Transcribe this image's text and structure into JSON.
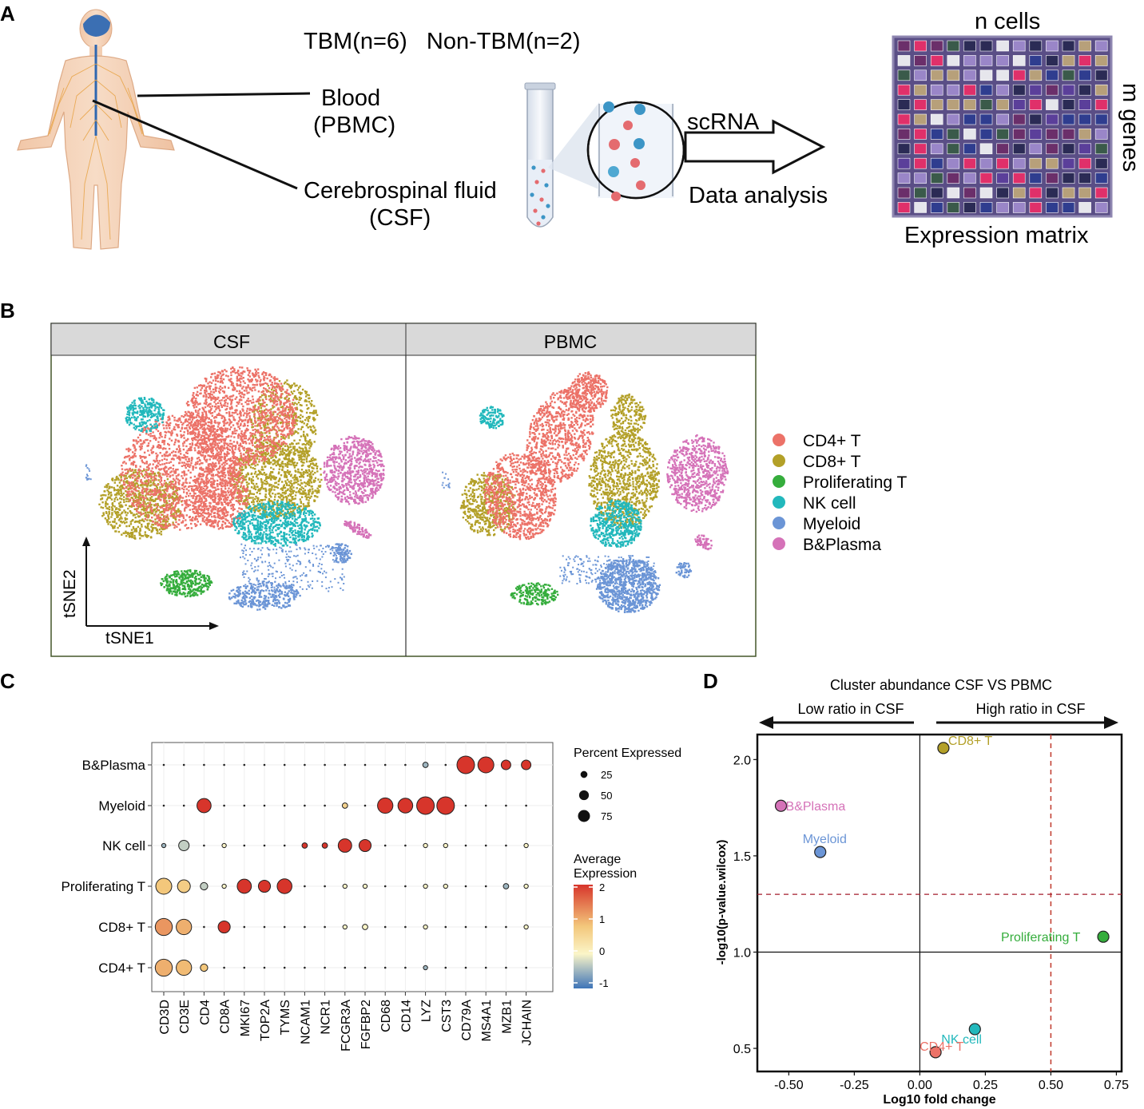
{
  "panel_labels": {
    "a": "A",
    "b": "B",
    "c": "C",
    "d": "D"
  },
  "panelA": {
    "cohort": "TBM(n=6)   Non-TBM(n=2)",
    "blood_line1": "Blood",
    "blood_line2": "(PBMC)",
    "csf_line1": "Cerebrospinal fluid",
    "csf_line2": "(CSF)",
    "scrna": "scRNA",
    "data_analysis": "Data analysis",
    "n_cells": "n cells",
    "m_genes": "m genes",
    "matrix_label": "Expression matrix",
    "matrix_colors": [
      "#5b3f9a",
      "#e6e6ec",
      "#e0306a",
      "#b7a07a",
      "#2f3d8f",
      "#6b2f6a",
      "#2b2b55",
      "#9a86c8",
      "#3a5a4a"
    ]
  },
  "panelB": {
    "facet_csf": "CSF",
    "facet_pbmc": "PBMC",
    "x_axis": "tSNE1",
    "y_axis": "tSNE2",
    "legend": [
      {
        "label": "CD4+ T",
        "color": "#ec7268"
      },
      {
        "label": "CD8+ T",
        "color": "#b3a028"
      },
      {
        "label": "Proliferating T",
        "color": "#35ad3c"
      },
      {
        "label": "NK cell",
        "color": "#22b8bc"
      },
      {
        "label": "Myeloid",
        "color": "#6b95d6"
      },
      {
        "label": "B&Plasma",
        "color": "#d572b8"
      }
    ]
  },
  "panelC": {
    "legend_size_title": "Percent Expressed",
    "legend_size_values": [
      "25",
      "50",
      "75"
    ],
    "legend_color_title_1": "Average",
    "legend_color_title_2": "Expression",
    "legend_color_ticks": [
      "2",
      "1",
      "0",
      "-1"
    ]
  },
  "panelD": {
    "title": "Cluster abundance CSF VS PBMC",
    "low": "Low ratio in CSF",
    "high": "High ratio in CSF",
    "xlabel": "Log10 fold change",
    "ylabel": "-log10(p-value.wilcox)"
  },
  "chart_data": [
    {
      "type": "scatter",
      "title": "",
      "xlabel": "",
      "ylabel": "",
      "genes": [
        "CD3D",
        "CD3E",
        "CD4",
        "CD8A",
        "MKI67",
        "TOP2A",
        "TYMS",
        "NCAM1",
        "NCR1",
        "FCGR3A",
        "FGFBP2",
        "CD68",
        "CD14",
        "LYZ",
        "CST3",
        "CD79A",
        "MS4A1",
        "MZB1",
        "JCHAIN"
      ],
      "clusters": [
        "B&Plasma",
        "Myeloid",
        "NK cell",
        "Proliferating T",
        "CD8+ T",
        "CD4+ T"
      ],
      "percent_expressed": [
        [
          3,
          3,
          2,
          2,
          2,
          2,
          2,
          2,
          2,
          2,
          2,
          2,
          2,
          8,
          3,
          85,
          70,
          25,
          25
        ],
        [
          3,
          3,
          55,
          2,
          2,
          2,
          2,
          2,
          2,
          8,
          2,
          65,
          60,
          85,
          85,
          2,
          2,
          2,
          3
        ],
        [
          5,
          30,
          2,
          5,
          2,
          2,
          2,
          8,
          8,
          50,
          40,
          2,
          2,
          5,
          5,
          2,
          2,
          2,
          5
        ],
        [
          70,
          45,
          15,
          5,
          55,
          40,
          60,
          2,
          2,
          5,
          5,
          2,
          2,
          5,
          5,
          2,
          2,
          8,
          5
        ],
        [
          80,
          65,
          2,
          40,
          2,
          2,
          2,
          2,
          2,
          5,
          8,
          2,
          2,
          5,
          2,
          2,
          2,
          2,
          5
        ],
        [
          80,
          65,
          15,
          2,
          2,
          2,
          2,
          2,
          2,
          2,
          2,
          2,
          2,
          5,
          2,
          2,
          2,
          2,
          2
        ]
      ],
      "average_expression": [
        [
          0,
          0,
          0,
          0,
          0,
          0,
          0,
          0,
          0,
          0,
          0,
          0,
          0,
          -0.5,
          0,
          2,
          2,
          2,
          2
        ],
        [
          0,
          0,
          2,
          0,
          0,
          0,
          0,
          0,
          0,
          0.6,
          0,
          2,
          2,
          2,
          2,
          0,
          0,
          0,
          0
        ],
        [
          -0.5,
          -0.3,
          0,
          0,
          0,
          0,
          0,
          2,
          2,
          2,
          2,
          0,
          0,
          0,
          0,
          0,
          0,
          0,
          0
        ],
        [
          0.8,
          0.7,
          -0.3,
          0,
          2,
          2,
          2,
          0,
          0,
          0,
          0,
          0,
          0,
          0,
          0,
          0,
          0,
          -0.5,
          0
        ],
        [
          1.2,
          1.0,
          0,
          2,
          0,
          0,
          0,
          0,
          0,
          0,
          0,
          0,
          0,
          0,
          0,
          0,
          0,
          0,
          0
        ],
        [
          1.0,
          0.9,
          0.8,
          0,
          0,
          0,
          0,
          0,
          0,
          0,
          0,
          0,
          0,
          -0.5,
          0,
          0,
          0,
          0,
          0
        ]
      ],
      "size_legend": [
        25,
        50,
        75
      ],
      "color_range": [
        -1,
        2
      ]
    },
    {
      "type": "scatter",
      "title": "Cluster abundance CSF VS PBMC",
      "xlabel": "Log10 fold change",
      "ylabel": "-log10(p-value.wilcox)",
      "xlim": [
        -0.62,
        0.77
      ],
      "ylim": [
        0.38,
        2.13
      ],
      "xticks": [
        -0.5,
        -0.25,
        0.0,
        0.25,
        0.5,
        0.75
      ],
      "xtick_labels": [
        "-0.50",
        "-0.25",
        "0.00",
        "0.25",
        "0.50",
        "0.75"
      ],
      "yticks": [
        0.5,
        1.0,
        1.5,
        2.0
      ],
      "ytick_labels": [
        "0.5",
        "1.0",
        "1.5",
        "2.0"
      ],
      "vlines": [
        0.0,
        0.5
      ],
      "hlines": [
        1.0,
        1.3
      ],
      "points": [
        {
          "label": "CD8+ T",
          "x": 0.09,
          "y": 2.06,
          "color": "#b3a028"
        },
        {
          "label": "B&Plasma",
          "x": -0.53,
          "y": 1.76,
          "color": "#d572b8"
        },
        {
          "label": "Myeloid",
          "x": -0.38,
          "y": 1.52,
          "color": "#6b95d6"
        },
        {
          "label": "Proliferating T",
          "x": 0.7,
          "y": 1.08,
          "color": "#35ad3c"
        },
        {
          "label": "NK cell",
          "x": 0.21,
          "y": 0.6,
          "color": "#22b8bc"
        },
        {
          "label": "CD4+ T",
          "x": 0.06,
          "y": 0.48,
          "color": "#ec7268"
        }
      ]
    }
  ]
}
